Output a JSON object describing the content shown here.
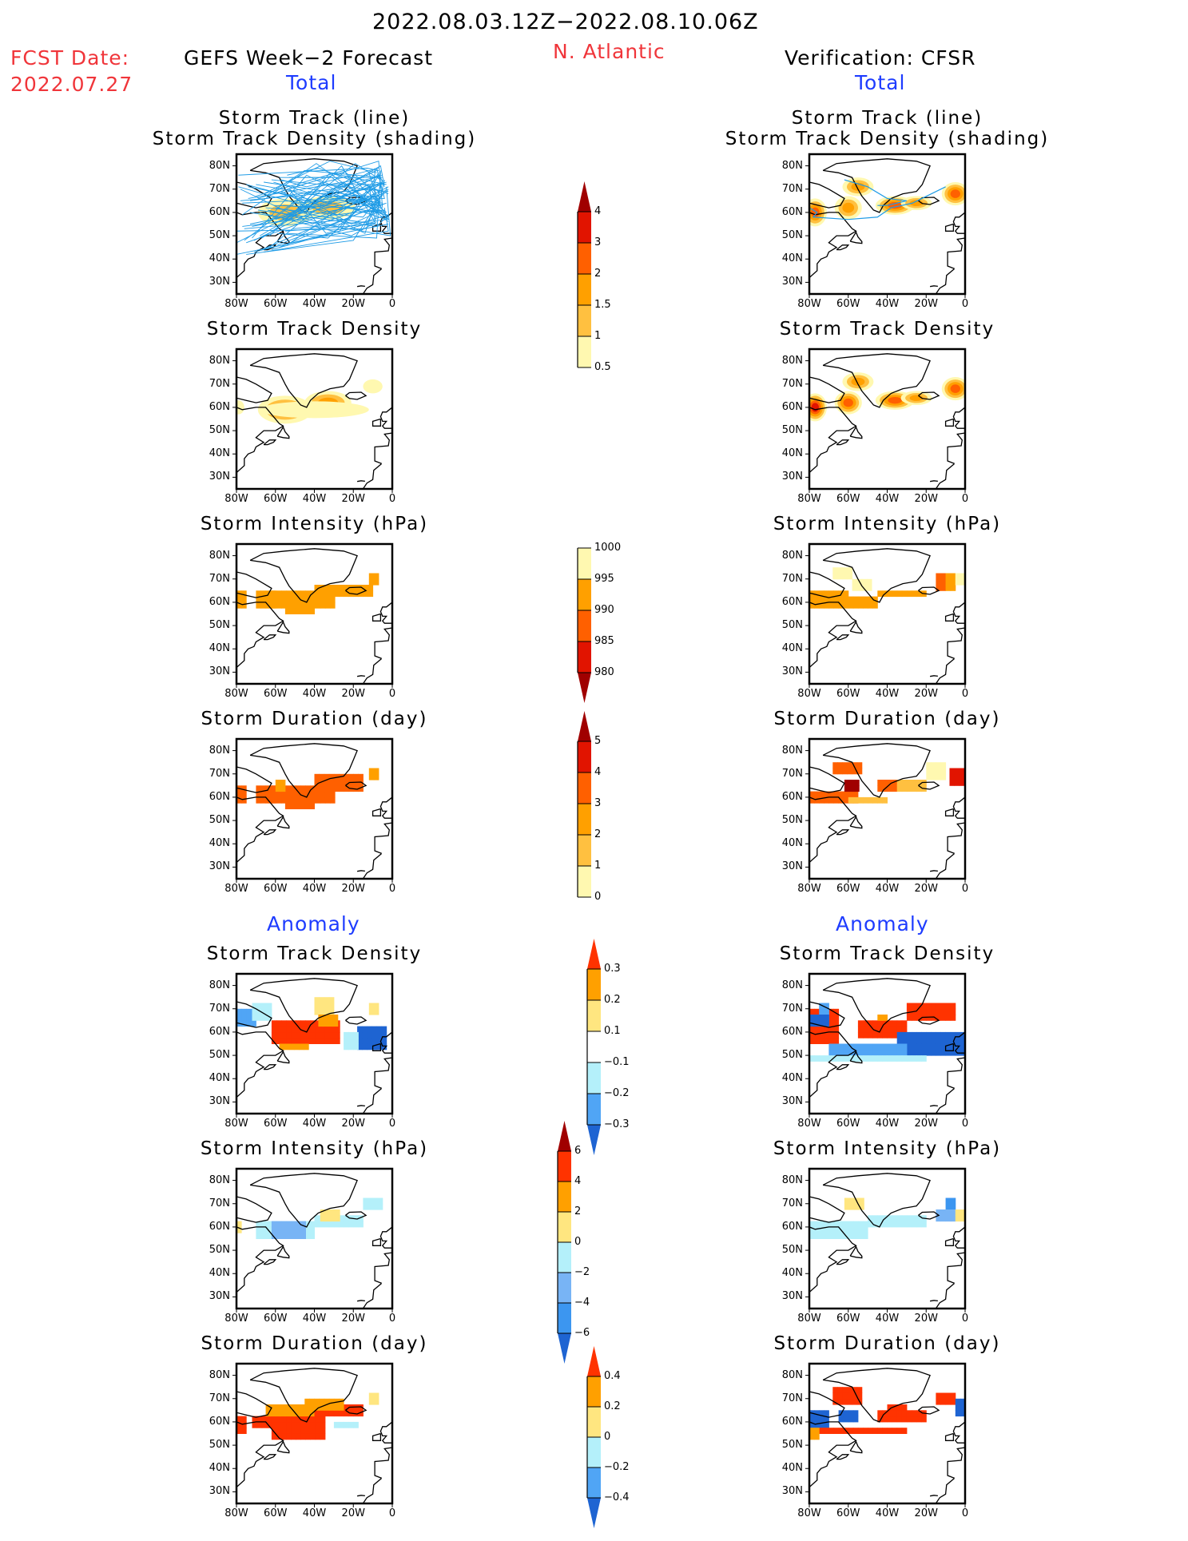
{
  "header": {
    "date_range": "2022.08.03.12Z−2022.08.10.06Z",
    "fcst_label": "FCST Date:",
    "fcst_date": "2022.07.27",
    "region": "N. Atlantic",
    "left_title": "GEFS Week−2 Forecast",
    "right_title": "Verification: CFSR",
    "left_total": "Total",
    "right_total": "Total",
    "left_anomaly": "Anomaly",
    "right_anomaly": "Anomaly"
  },
  "axes": {
    "lat_labels": [
      "80N",
      "70N",
      "60N",
      "50N",
      "40N",
      "30N"
    ],
    "lon_labels": [
      "80W",
      "60W",
      "40W",
      "20W",
      "0"
    ]
  },
  "panels": {
    "left": [
      {
        "title1": "Storm Track (line)",
        "title2": "Storm Track Density (shading)",
        "field": "track_density_lines"
      },
      {
        "title1": "Storm Track Density",
        "field": "track_density"
      },
      {
        "title1": "Storm Intensity (hPa)",
        "field": "intensity"
      },
      {
        "title1": "Storm Duration (day)",
        "field": "duration"
      },
      {
        "title1": "Storm Track Density",
        "field": "track_density_anom"
      },
      {
        "title1": "Storm Intensity (hPa)",
        "field": "intensity_anom"
      },
      {
        "title1": "Storm Duration (day)",
        "field": "duration_anom"
      }
    ],
    "right": [
      {
        "title1": "Storm Track (line)",
        "title2": "Storm Track Density (shading)",
        "field": "track_density_lines"
      },
      {
        "title1": "Storm Track Density",
        "field": "track_density"
      },
      {
        "title1": "Storm Intensity (hPa)",
        "field": "intensity"
      },
      {
        "title1": "Storm Duration (day)",
        "field": "duration"
      },
      {
        "title1": "Storm Track Density",
        "field": "track_density_anom"
      },
      {
        "title1": "Storm Intensity (hPa)",
        "field": "intensity_anom"
      },
      {
        "title1": "Storm Duration (day)",
        "field": "duration_anom"
      }
    ]
  },
  "colorbars": [
    {
      "name": "track-density-colorbar",
      "labels": [
        "4",
        "3",
        "2",
        "1.5",
        "1",
        "0.5"
      ],
      "colors": [
        "#a00000",
        "#e11400",
        "#ff6000",
        "#ffa000",
        "#ffc040",
        "#fff8b0"
      ],
      "arrow": "top"
    },
    {
      "name": "intensity-colorbar",
      "labels": [
        "1000",
        "995",
        "990",
        "985",
        "980"
      ],
      "colors": [
        "#fff8b0",
        "#ffa000",
        "#ff6000",
        "#e11400",
        "#a00000"
      ],
      "arrow": "bottom"
    },
    {
      "name": "duration-colorbar",
      "labels": [
        "5",
        "4",
        "3",
        "2",
        "1",
        "0"
      ],
      "colors": [
        "#a00000",
        "#e11400",
        "#ff6000",
        "#ffa000",
        "#ffc040",
        "#fff8b0"
      ],
      "arrow": "top"
    },
    {
      "name": "track-density-anom-colorbar",
      "labels": [
        "0.3",
        "0.2",
        "0.1",
        "−0.1",
        "−0.2",
        "−0.3"
      ],
      "colors": [
        "#ff3300",
        "#ffa000",
        "#ffe680",
        "#ffffff",
        "#b4f0fa",
        "#50a5f5",
        "#1e64d2"
      ],
      "arrow": "both"
    },
    {
      "name": "intensity-anom-colorbar",
      "labels": [
        "6",
        "4",
        "2",
        "0",
        "−2",
        "−4",
        "−6"
      ],
      "colors": [
        "#a00000",
        "#ff3300",
        "#ffa000",
        "#ffe680",
        "#b4f0fa",
        "#78b4f5",
        "#3c96f0",
        "#1e64d2"
      ],
      "arrow": "both"
    },
    {
      "name": "duration-anom-colorbar",
      "labels": [
        "0.4",
        "0.2",
        "0",
        "−0.2",
        "−0.4"
      ],
      "colors": [
        "#ff3300",
        "#ffa000",
        "#ffe680",
        "#b4f0fa",
        "#50a5f5",
        "#1e64d2"
      ],
      "arrow": "both"
    }
  ],
  "colors": {
    "track_line": "#1e9be6",
    "frame": "#000000",
    "coast": "#000000"
  }
}
